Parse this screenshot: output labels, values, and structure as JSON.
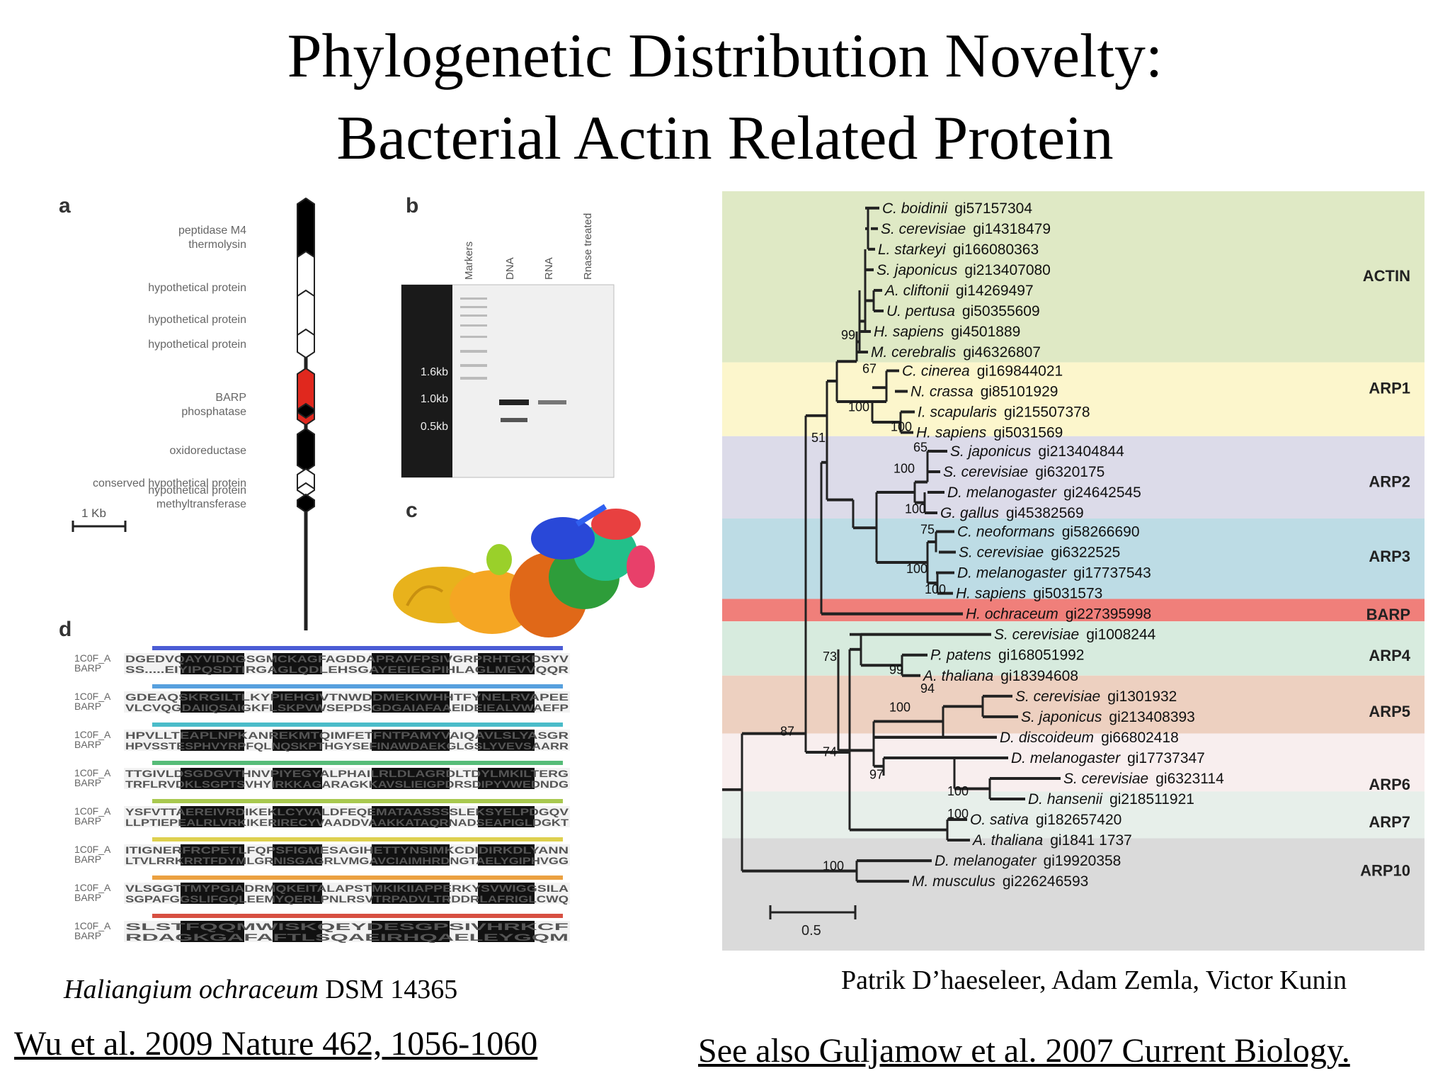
{
  "slide": {
    "title_line1": "Phylogenetic Distribution Novelty:",
    "title_line2": "Bacterial Actin Related Protein"
  },
  "panel_a": {
    "label": "a",
    "scale_label": "1 Kb",
    "genes": [
      {
        "name": "peptidase M4 thermolysin",
        "line1": "peptidase M4",
        "line2": "thermolysin",
        "fill": "#000000"
      },
      {
        "name": "hypothetical protein",
        "fill": "#ffffff"
      },
      {
        "name": "hypothetical protein",
        "fill": "#ffffff"
      },
      {
        "name": "hypothetical protein",
        "fill": "#ffffff"
      },
      {
        "name": "BARP",
        "fill": "#e0281e"
      },
      {
        "name": "phosphatase",
        "fill": "#000000"
      },
      {
        "name": "oxidoreductase",
        "fill": "#000000"
      },
      {
        "name": "conserved hypothetical protein",
        "fill": "#ffffff"
      },
      {
        "name": "hypothetical protein",
        "fill": "#ffffff"
      },
      {
        "name": "methyltransferase",
        "fill": "#000000"
      }
    ]
  },
  "panel_b": {
    "label": "b",
    "lanes": [
      "Markers",
      "DNA",
      "RNA",
      "Rnase treated"
    ],
    "sizes": [
      "1.6kb",
      "1.0kb",
      "0.5kb"
    ]
  },
  "panel_c": {
    "label": "c"
  },
  "panel_d": {
    "label": "d",
    "row_labels": [
      "1C0F_A",
      "BARP"
    ],
    "rows": [
      {
        "a": "DGEDVQAYVIDNGSGMCKAGFAGDDAPRAVFPSIVGRPRHTGKDSYV",
        "b": "SS.....EIYIPQSDTIRGAGLQDLEHSGAYEEIEGPIHLAGLMEVVQQR"
      },
      {
        "a": "GDEAQSKRGILTLKYPIEHGIVTNWDDMEKIWHHTFYNELRVAPEE",
        "b": "VLCVQGDAIIQSAIGKFLSKPVWSEPDSGDGAIAFAAEIDEIEALVWAEFP"
      },
      {
        "a": "HPVLLTEAPLNPKANREKMTQIMFETFNTPAMYVAIQAVLSLYASGR",
        "b": "HPVSSTESPHVYRPFQLNQSKPTHGYSEFINAWDAEKGLGSLYVEVSAARR"
      },
      {
        "a": "TTGIVLDSGDGVTHNVPIYEGYALPHAILRLDLAGRDLTDYLMKILTERG",
        "b": "TRFLRVDKLSGPTSVHYIRKKAGARAGKKAVSLIEIGPDRSDIPYVWEDNDG"
      },
      {
        "a": "YSFVTTAEREIVRDIKEKLCYVALDFEQEMATAASSSSLEKSYELPDGQV",
        "b": "LLPTIEPEALRLVRKIKERIRECYVAADDVAAKKATAQRNADSEAPIGLDGKT"
      },
      {
        "a": "ITIGNERFRCPETLFQPSFIGMESAGIHETTYNSIMKCDIDIRKDLYANN",
        "b": "LTVLRRKRRTFDYMLGRNISGAGRLVMGAVCIAIMHRDNGTAELYGIPHVGG"
      },
      {
        "a": "VLSGGTTMYPGIADRMQKEITALAPSTMKIKIIAPPERKYSVWIGGSILA",
        "b": "SGPAFGGSLIFGQLEEMYQERLPNLRSVTRPADVLTRDDRLAFRIGLCWQ"
      },
      {
        "a": "SLSTFQQMWISKQEYDESGPSIVHRKCF",
        "b": "RDAGKGAFAFTLSQAEIRHQAELEYGQM"
      }
    ]
  },
  "tree": {
    "taxa": [
      {
        "sp": "C. boidinii",
        "gi": "gi57157304"
      },
      {
        "sp": "S. cerevisiae",
        "gi": "gi14318479"
      },
      {
        "sp": "L. starkeyi",
        "gi": "gi166080363"
      },
      {
        "sp": "S. japonicus",
        "gi": "gi213407080"
      },
      {
        "sp": "A. cliftonii",
        "gi": "gi14269497"
      },
      {
        "sp": "U. pertusa",
        "gi": "gi50355609"
      },
      {
        "sp": "H. sapiens",
        "gi": "gi4501889"
      },
      {
        "sp": "M. cerebralis",
        "gi": "gi46326807"
      },
      {
        "sp": "C. cinerea",
        "gi": "gi169844021"
      },
      {
        "sp": "N. crassa",
        "gi": "gi85101929"
      },
      {
        "sp": "I. scapularis",
        "gi": "gi215507378"
      },
      {
        "sp": "H. sapiens",
        "gi": "gi5031569"
      },
      {
        "sp": "S. japonicus",
        "gi": "gi213404844"
      },
      {
        "sp": "S. cerevisiae",
        "gi": "gi6320175"
      },
      {
        "sp": "D. melanogaster",
        "gi": "gi24642545"
      },
      {
        "sp": "G. gallus",
        "gi": "gi45382569"
      },
      {
        "sp": "C. neoformans",
        "gi": "gi58266690"
      },
      {
        "sp": "S. cerevisiae",
        "gi": "gi6322525"
      },
      {
        "sp": "D. melanogaster",
        "gi": "gi17737543"
      },
      {
        "sp": "H. sapiens",
        "gi": "gi5031573"
      },
      {
        "sp": "H. ochraceum",
        "gi": "gi227395998"
      },
      {
        "sp": "S. cerevisiae",
        "gi": "gi1008244"
      },
      {
        "sp": "P. patens",
        "gi": "gi168051992"
      },
      {
        "sp": "A. thaliana",
        "gi": "gi18394608"
      },
      {
        "sp": "S. cerevisiae",
        "gi": "gi1301932"
      },
      {
        "sp": "S. japonicus",
        "gi": "gi213408393"
      },
      {
        "sp": "D. discoideum",
        "gi": "gi66802418"
      },
      {
        "sp": "D. melanogaster",
        "gi": "gi17737347"
      },
      {
        "sp": "S. cerevisiae",
        "gi": "gi6323114"
      },
      {
        "sp": "D. hansenii",
        "gi": "gi218511921"
      },
      {
        "sp": "O. sativa",
        "gi": "gi182657420"
      },
      {
        "sp": "A. thaliana",
        "gi": "gi1841 1737"
      },
      {
        "sp": "D. melanogater",
        "gi": "gi19920358"
      },
      {
        "sp": "M. musculus",
        "gi": "gi226246593"
      }
    ],
    "groups": [
      {
        "name": "ACTIN",
        "color": "#dfe9c5"
      },
      {
        "name": "ARP1",
        "color": "#fcf6cc"
      },
      {
        "name": "ARP2",
        "color": "#dcdbe9"
      },
      {
        "name": "ARP3",
        "color": "#bddce5"
      },
      {
        "name": "BARP",
        "color": "#f07f7a"
      },
      {
        "name": "ARP4",
        "color": "#d7ebde"
      },
      {
        "name": "ARP5",
        "color": "#edd0c0"
      },
      {
        "name": "ARP6",
        "color": "#f8eeee"
      },
      {
        "name": "ARP7",
        "color": "#e7efea"
      },
      {
        "name": "ARP10",
        "color": "#dadada"
      }
    ],
    "bootstrap": [
      "99",
      "67",
      "100",
      "100",
      "51",
      "65",
      "100",
      "100",
      "75",
      "100",
      "100",
      "73",
      "99",
      "94",
      "100",
      "87",
      "74",
      "97",
      "100",
      "100",
      "100"
    ],
    "scale_label": "0.5"
  },
  "captions": {
    "organism_italic": "Haliangium ochraceum",
    "organism_strain": " DSM 14365",
    "authors": "Patrik D’haeseleer, Adam Zemla, Victor Kunin",
    "ref_wu": "Wu et al. 2009 Nature 462, 1056-1060",
    "ref_guljamow": "See also Guljamow et al. 2007 Current Biology."
  }
}
